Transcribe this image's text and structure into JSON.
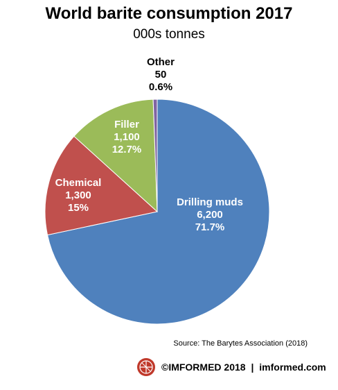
{
  "chart_data": {
    "type": "pie",
    "title": "World barite consumption 2017",
    "subtitle": "000s tonnes",
    "slices": [
      {
        "label": "Drilling muds",
        "value": 6200,
        "value_label": "6,200",
        "percent_label": "71.7%",
        "color": "#4f81bd"
      },
      {
        "label": "Chemical",
        "value": 1300,
        "value_label": "1,300",
        "percent_label": "15%",
        "color": "#c0504d"
      },
      {
        "label": "Filler",
        "value": 1100,
        "value_label": "1,100",
        "percent_label": "12.7%",
        "color": "#9bbb59"
      },
      {
        "label": "Other",
        "value": 50,
        "value_label": "50",
        "percent_label": "0.6%",
        "color": "#8064a2"
      }
    ],
    "source": "Source: The Barytes Association (2018)"
  },
  "footer": {
    "brand": "©IMFORMED 2018",
    "separator": "|",
    "site": "imformed.com"
  },
  "logo_icon": "imformed-logo-icon"
}
